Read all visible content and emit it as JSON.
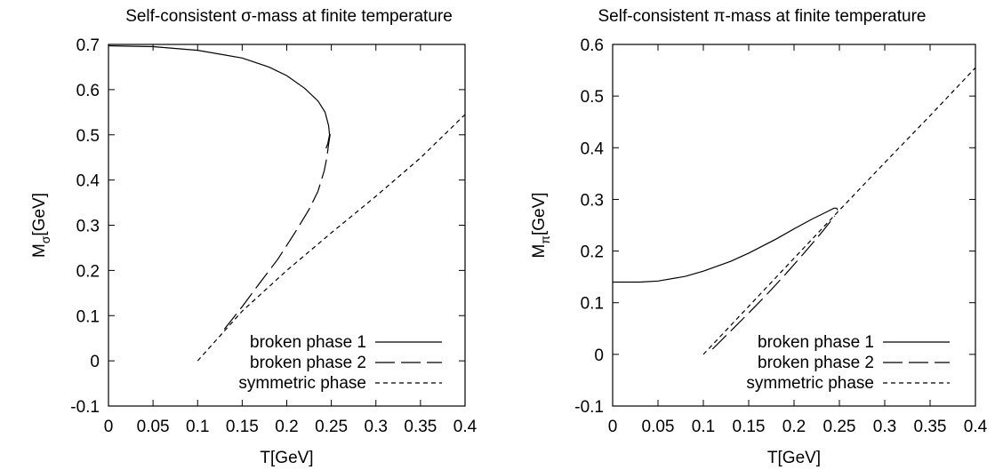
{
  "chart_data": [
    {
      "type": "line",
      "title": "Self-consistent σ-mass at finite temperature",
      "xlabel": "T[GeV]",
      "ylabel_main": "M",
      "ylabel_sub": "σ",
      "ylabel_unit": "[GeV]",
      "xlim": [
        0,
        0.4
      ],
      "ylim": [
        -0.1,
        0.7
      ],
      "xticks": [
        "0",
        "0.05",
        "0.1",
        "0.15",
        "0.2",
        "0.25",
        "0.3",
        "0.35",
        "0.4"
      ],
      "yticks": [
        "-0.1",
        "0",
        "0.1",
        "0.2",
        "0.3",
        "0.4",
        "0.5",
        "0.6",
        "0.7"
      ],
      "grid": false,
      "legend_position": "bottom-right",
      "series": [
        {
          "name": "broken phase 1",
          "style": "solid",
          "x": [
            0,
            0.05,
            0.1,
            0.15,
            0.18,
            0.2,
            0.22,
            0.235,
            0.243,
            0.247,
            0.248,
            0.246,
            0.244
          ],
          "y": [
            0.697,
            0.695,
            0.687,
            0.67,
            0.65,
            0.631,
            0.603,
            0.575,
            0.55,
            0.52,
            0.5,
            0.48,
            0.47
          ]
        },
        {
          "name": "broken phase 2",
          "style": "dashed",
          "x": [
            0.13,
            0.15,
            0.17,
            0.19,
            0.21,
            0.225,
            0.235,
            0.242,
            0.245,
            0.247,
            0.249
          ],
          "y": [
            0.07,
            0.12,
            0.173,
            0.225,
            0.286,
            0.335,
            0.375,
            0.42,
            0.45,
            0.48,
            0.505
          ]
        },
        {
          "name": "symmetric phase",
          "style": "dotted",
          "x": [
            0.1,
            0.15,
            0.2,
            0.25,
            0.3,
            0.35,
            0.4
          ],
          "y": [
            0,
            0.11,
            0.2,
            0.283,
            0.364,
            0.449,
            0.545
          ]
        }
      ]
    },
    {
      "type": "line",
      "title": "Self-consistent π-mass at finite temperature",
      "xlabel": "T[GeV]",
      "ylabel_main": "M",
      "ylabel_sub": "π",
      "ylabel_unit": "[GeV]",
      "xlim": [
        0,
        0.4
      ],
      "ylim": [
        -0.1,
        0.6
      ],
      "xticks": [
        "0",
        "0.05",
        "0.1",
        "0.15",
        "0.2",
        "0.25",
        "0.3",
        "0.35",
        "0.4"
      ],
      "yticks": [
        "-0.1",
        "0",
        "0.1",
        "0.2",
        "0.3",
        "0.4",
        "0.5",
        "0.6"
      ],
      "grid": false,
      "legend_position": "bottom-right",
      "series": [
        {
          "name": "broken phase 1",
          "style": "solid",
          "x": [
            0,
            0.03,
            0.05,
            0.08,
            0.1,
            0.13,
            0.15,
            0.18,
            0.2,
            0.22,
            0.235,
            0.244,
            0.247,
            0.248
          ],
          "y": [
            0.14,
            0.14,
            0.142,
            0.151,
            0.161,
            0.18,
            0.196,
            0.223,
            0.243,
            0.262,
            0.275,
            0.283,
            0.283,
            0.279
          ]
        },
        {
          "name": "broken phase 2",
          "style": "dashed",
          "x": [
            0.11,
            0.13,
            0.15,
            0.17,
            0.19,
            0.21,
            0.23,
            0.245
          ],
          "y": [
            0.01,
            0.045,
            0.08,
            0.116,
            0.154,
            0.194,
            0.235,
            0.268
          ]
        },
        {
          "name": "symmetric phase",
          "style": "dotted",
          "x": [
            0.1,
            0.15,
            0.2,
            0.25,
            0.3,
            0.35,
            0.4
          ],
          "y": [
            0,
            0.093,
            0.186,
            0.279,
            0.371,
            0.462,
            0.555
          ]
        }
      ]
    }
  ]
}
